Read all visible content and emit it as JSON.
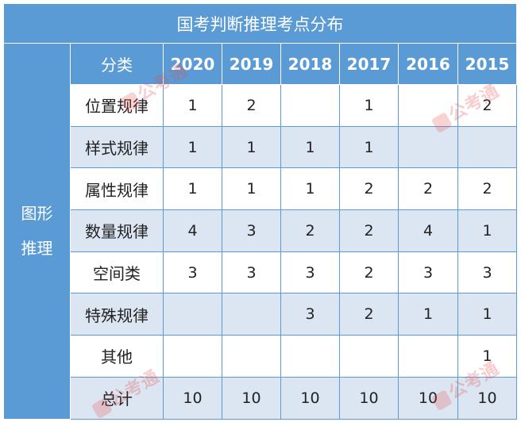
{
  "title": "国考判断推理考点分布",
  "group_label_line1": "图形",
  "group_label_line2": "推理",
  "columns": [
    "分类",
    "2020",
    "2019",
    "2018",
    "2017",
    "2016",
    "2015"
  ],
  "rows": [
    {
      "category": "位置规律",
      "values": [
        "1",
        "2",
        "",
        "1",
        "",
        "2"
      ]
    },
    {
      "category": "样式规律",
      "values": [
        "1",
        "1",
        "1",
        "1",
        "",
        ""
      ]
    },
    {
      "category": "属性规律",
      "values": [
        "1",
        "1",
        "1",
        "2",
        "2",
        "2"
      ]
    },
    {
      "category": "数量规律",
      "values": [
        "4",
        "3",
        "2",
        "2",
        "4",
        "1"
      ]
    },
    {
      "category": "空间类",
      "values": [
        "3",
        "3",
        "3",
        "2",
        "3",
        "3"
      ]
    },
    {
      "category": "特殊规律",
      "values": [
        "",
        "",
        "3",
        "2",
        "1",
        "1"
      ]
    },
    {
      "category": "其他",
      "values": [
        "",
        "",
        "",
        "",
        "",
        "1"
      ]
    },
    {
      "category": "总计",
      "values": [
        "10",
        "10",
        "10",
        "10",
        "10",
        "10"
      ]
    }
  ],
  "watermark_text": "公考通",
  "colors": {
    "header_blue": "#5b9bd5",
    "stripe": "#dce6f2",
    "watermark": "#e74c4c"
  }
}
